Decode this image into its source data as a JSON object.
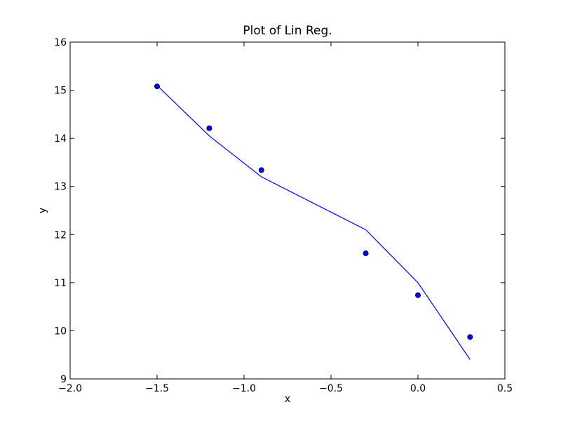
{
  "chart_data": {
    "type": "line",
    "title": "Plot of Lin Reg.",
    "xlabel": "x",
    "ylabel": "y",
    "xlim": [
      -2.0,
      0.5
    ],
    "ylim": [
      9,
      16
    ],
    "grid": false,
    "x_ticks": [
      -2.0,
      -1.5,
      -1.0,
      -0.5,
      0.0,
      0.5
    ],
    "x_tick_labels": [
      "−2.0",
      "−1.5",
      "−1.0",
      "−0.5",
      "0.0",
      "0.5"
    ],
    "y_ticks": [
      9,
      10,
      11,
      12,
      13,
      14,
      15,
      16
    ],
    "y_tick_labels": [
      "9",
      "10",
      "11",
      "12",
      "13",
      "14",
      "15",
      "16"
    ],
    "series": [
      {
        "kind": "scatter",
        "color": "#0000ff",
        "x": [
          -1.5,
          -1.2,
          -0.9,
          -0.3,
          0.0,
          0.3
        ],
        "y": [
          15.08,
          14.21,
          13.34,
          11.61,
          10.74,
          9.87
        ]
      },
      {
        "kind": "line",
        "color": "#0000ff",
        "x": [
          -1.5,
          -1.2,
          -0.9,
          -0.3,
          0.0,
          0.3
        ],
        "y": [
          15.1,
          14.05,
          13.2,
          12.1,
          11.0,
          9.4
        ]
      }
    ]
  }
}
